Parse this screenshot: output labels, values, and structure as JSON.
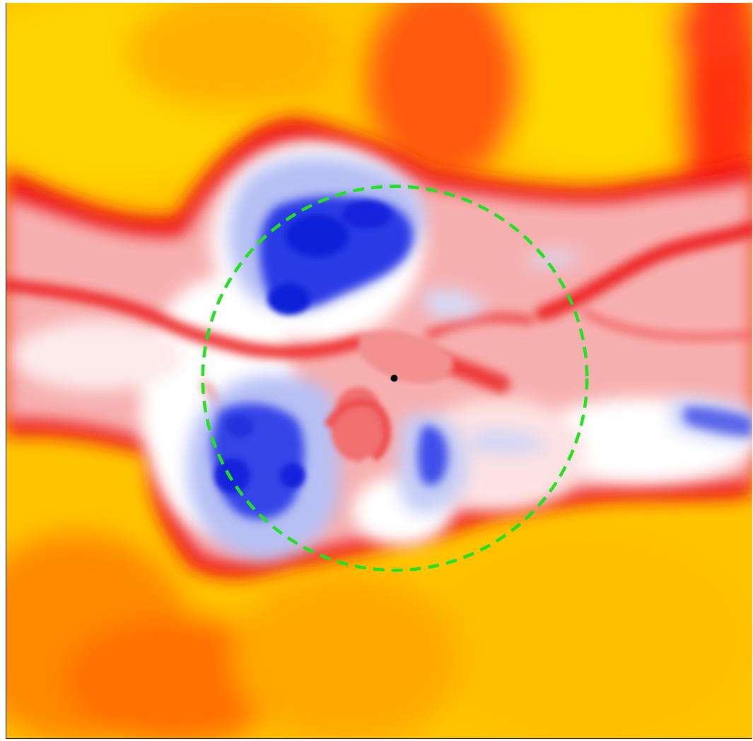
{
  "image": {
    "colors": {
      "hot_outer": "#ffd200",
      "warm": "#ffb400",
      "orange": "#ff7a00",
      "red": "#ee1010",
      "pink": "#f6aaaa",
      "white": "#ffffff",
      "light_blue": "#a8b4f2",
      "blue": "#1c2ae0",
      "marker_circle": "#22e022",
      "center_dot": "#000000"
    },
    "overlays": {
      "circle_style": "dashed",
      "center_marker": "dot"
    }
  }
}
